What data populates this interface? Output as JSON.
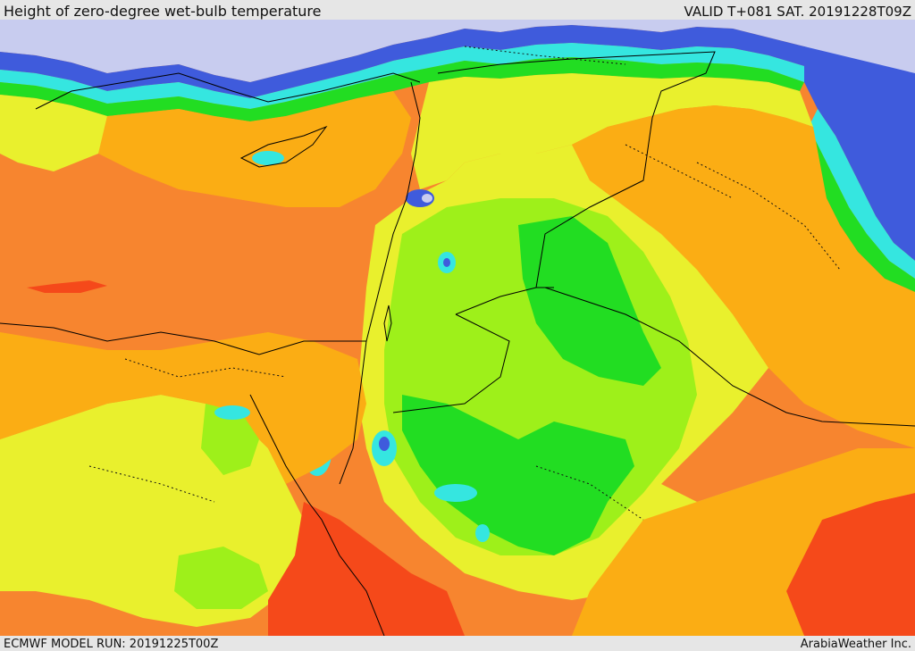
{
  "header": {
    "title": "Height of zero-degree wet-bulb temperature",
    "valid_time": "VALID T+081 SAT. 20191228T09Z"
  },
  "footer": {
    "model_run": "ECMWF MODEL RUN: 20191225T00Z",
    "credit": "ArabiaWeather Inc."
  },
  "map": {
    "region": "Eastern Mediterranean, Levant, Egypt and northern Arabia",
    "palette": {
      "red": "#f5491a",
      "dark_orange": "#f7852f",
      "orange": "#fbad14",
      "yellow": "#e9f02d",
      "light_green": "#9ef01a",
      "green": "#22dd22",
      "cyan": "#35e6e0",
      "blue": "#3f5bdc",
      "lavender": "#c8ccef",
      "border": "#000000"
    }
  }
}
